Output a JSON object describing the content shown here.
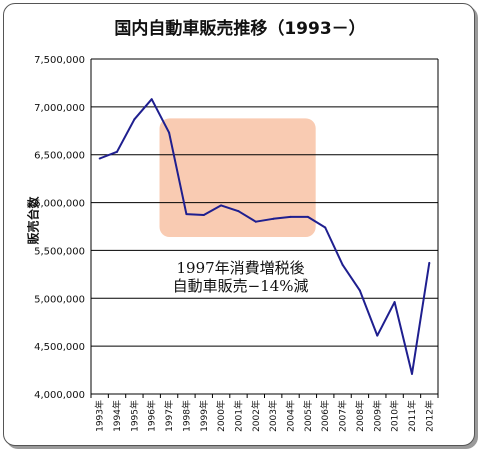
{
  "chart_data": {
    "type": "line",
    "title": "国内自動車販売推移（1993－）",
    "ylabel": "販売台数",
    "xlabel": "",
    "ylim": [
      4000000,
      7500000
    ],
    "yticks": [
      "4,000,000",
      "4,500,000",
      "5,000,000",
      "5,500,000",
      "6,000,000",
      "6,500,000",
      "7,000,000",
      "7,500,000"
    ],
    "ytick_values": [
      4000000,
      4500000,
      5000000,
      5500000,
      6000000,
      6500000,
      7000000,
      7500000
    ],
    "grid": true,
    "categories": [
      "1993年",
      "1994年",
      "1995年",
      "1996年",
      "1997年",
      "1998年",
      "1999年",
      "2000年",
      "2001年",
      "2002年",
      "2003年",
      "2004年",
      "2005年",
      "2006年",
      "2007年",
      "2008年",
      "2009年",
      "2010年",
      "2011年",
      "2012年"
    ],
    "series": [
      {
        "name": "",
        "color": "#1f1f8f",
        "values": [
          6460000,
          6530000,
          6870000,
          7080000,
          6730000,
          5880000,
          5870000,
          5970000,
          5910000,
          5800000,
          5830000,
          5850000,
          5850000,
          5740000,
          5350000,
          5080000,
          4610000,
          4960000,
          4210000,
          5370000
        ]
      }
    ],
    "annotation": {
      "lines": [
        "1997年消費増税後",
        "自動車販売−14%減"
      ],
      "highlight_color": "#f9cbb2",
      "x_range": [
        "1996年",
        "2005年"
      ],
      "y_range": [
        5640000,
        6880000
      ]
    }
  }
}
